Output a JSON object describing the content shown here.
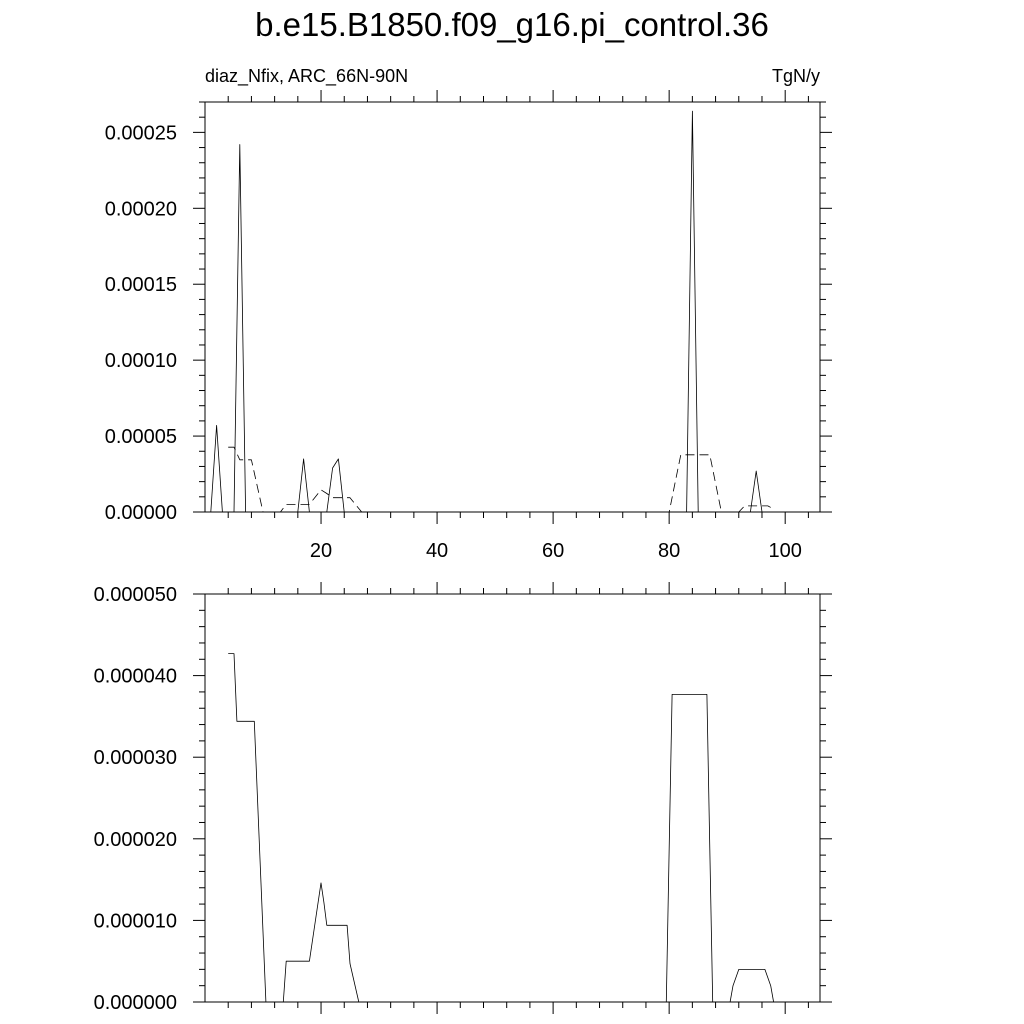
{
  "title": "b.e15.B1850.f09_g16.pi_control.36",
  "left_string": "diaz_Nfix, ARC_66N-90N",
  "right_string": "TgN/y",
  "chart_data": [
    {
      "type": "line",
      "xlim": [
        0,
        106
      ],
      "ylim": [
        0,
        0.00027
      ],
      "x_ticks": [
        20,
        40,
        60,
        80,
        100
      ],
      "x_tick_labels": [
        "20",
        "40",
        "60",
        "80",
        "100"
      ],
      "y_ticks": [
        0,
        5e-05,
        0.0001,
        0.00015,
        0.0002,
        0.00025
      ],
      "y_tick_labels": [
        "0.00000",
        "0.00005",
        "0.00010",
        "0.00015",
        "0.00020",
        "0.00025"
      ],
      "series": [
        {
          "style": "solid",
          "x": [
            0,
            1,
            2,
            3,
            4,
            5,
            6,
            7,
            8,
            9,
            10,
            11,
            12,
            13,
            14,
            15,
            16,
            17,
            18,
            19,
            20,
            21,
            22,
            23,
            24,
            25,
            26,
            27,
            28,
            29,
            30,
            31,
            32,
            33,
            34,
            35,
            36,
            37,
            38,
            39,
            40,
            41,
            42,
            43,
            44,
            45,
            46,
            47,
            48,
            49,
            50,
            51,
            52,
            53,
            54,
            55,
            56,
            57,
            58,
            59,
            60,
            61,
            62,
            63,
            64,
            65,
            66,
            67,
            68,
            69,
            70,
            71,
            72,
            73,
            74,
            75,
            76,
            77,
            78,
            79,
            80,
            81,
            82,
            83,
            84,
            85,
            86,
            87,
            88,
            89,
            90,
            91,
            92,
            93,
            94,
            95,
            96,
            97,
            98,
            99,
            100,
            101,
            102,
            103,
            104,
            105
          ],
          "values": [
            0,
            0,
            5.7e-05,
            0,
            0,
            0,
            0.000242,
            0,
            0,
            0,
            0,
            0,
            0,
            0,
            0,
            0,
            0,
            3.5e-05,
            0,
            0,
            0,
            0,
            2.9e-05,
            3.5e-05,
            0,
            0,
            0,
            0,
            0,
            0,
            0,
            0,
            0,
            0,
            0,
            0,
            0,
            0,
            0,
            0,
            0,
            0,
            0,
            0,
            0,
            0,
            0,
            0,
            0,
            0,
            0,
            0,
            0,
            0,
            0,
            0,
            0,
            0,
            0,
            0,
            0,
            0,
            0,
            0,
            0,
            0,
            0,
            0,
            0,
            0,
            0,
            0,
            0,
            0,
            0,
            0,
            0,
            0,
            0,
            0,
            0,
            0,
            0,
            0,
            0.000264,
            0,
            0,
            0,
            0,
            0,
            0,
            0,
            0,
            0,
            0,
            2.7e-05,
            0,
            0,
            0,
            0,
            0,
            0,
            0,
            0,
            0,
            0
          ]
        },
        {
          "style": "dashed",
          "x": [
            4,
            5,
            6,
            7,
            8,
            9,
            10,
            11,
            12,
            13,
            14,
            15,
            16,
            17,
            18,
            19,
            20,
            21,
            22,
            23,
            24,
            25,
            26,
            27,
            28,
            29,
            30,
            31,
            32,
            33,
            34,
            35,
            36,
            37,
            38,
            39,
            40,
            41,
            42,
            43,
            44,
            45,
            46,
            47,
            48,
            49,
            50,
            51,
            52,
            53,
            54,
            55,
            56,
            57,
            58,
            59,
            60,
            61,
            62,
            63,
            64,
            65,
            66,
            67,
            68,
            69,
            70,
            71,
            72,
            73,
            74,
            75,
            76,
            77,
            78,
            79,
            80,
            81,
            82,
            83,
            84,
            85,
            86,
            87,
            88,
            89,
            90,
            91,
            92,
            93,
            94,
            95,
            96,
            97,
            98
          ],
          "values": [
            4.27e-05,
            4.27e-05,
            3.44e-05,
            3.44e-05,
            3.44e-05,
            1.72e-05,
            0,
            0,
            0,
            0,
            5e-06,
            5e-06,
            5e-06,
            5e-06,
            5e-06,
            9.8e-06,
            1.46e-05,
            1.22e-05,
            9.4e-06,
            9.4e-06,
            9.4e-06,
            9.4e-06,
            4.7e-06,
            0,
            0,
            0,
            0,
            0,
            0,
            0,
            0,
            0,
            0,
            0,
            0,
            0,
            0,
            0,
            0,
            0,
            0,
            0,
            0,
            0,
            0,
            0,
            0,
            0,
            0,
            0,
            0,
            0,
            0,
            0,
            0,
            0,
            0,
            0,
            0,
            0,
            0,
            0,
            0,
            0,
            0,
            0,
            0,
            0,
            0,
            0,
            0,
            0,
            0,
            0,
            0,
            0,
            0,
            1.9e-05,
            3.77e-05,
            3.77e-05,
            3.77e-05,
            3.77e-05,
            3.77e-05,
            3.77e-05,
            1.88e-05,
            0,
            0,
            0,
            0,
            4e-06,
            4e-06,
            4e-06,
            4e-06,
            4e-06,
            2e-06
          ]
        }
      ]
    },
    {
      "type": "line",
      "xlim": [
        0,
        106
      ],
      "ylim": [
        0,
        5e-05
      ],
      "x_ticks": [
        20,
        40,
        60,
        80,
        100
      ],
      "x_tick_labels": [],
      "y_ticks": [
        0,
        1e-05,
        2e-05,
        3e-05,
        4e-05,
        5e-05
      ],
      "y_tick_labels": [
        "0.000000",
        "0.000010",
        "0.000020",
        "0.000030",
        "0.000040",
        "0.000050"
      ],
      "series": [
        {
          "style": "solid",
          "x": [
            4,
            5,
            5.5,
            8.5,
            9.5,
            10,
            10.5,
            11,
            12,
            13,
            13.5,
            14,
            15,
            16,
            17,
            18,
            19,
            20,
            20.5,
            21,
            22,
            23,
            24,
            24.5,
            25,
            26.5,
            27,
            28,
            30,
            40,
            50,
            60,
            70,
            79.5,
            80,
            80.5,
            82,
            84,
            86.5,
            87,
            87.5,
            88,
            90,
            90.5,
            91,
            92,
            93,
            94,
            95,
            96,
            96.5,
            97.5,
            98,
            100,
            105
          ],
          "values": [
            4.27e-05,
            4.27e-05,
            3.44e-05,
            3.44e-05,
            1.72e-05,
            8.6e-06,
            0,
            0,
            0,
            0,
            0,
            5e-06,
            5e-06,
            5e-06,
            5e-06,
            5e-06,
            9.8e-06,
            1.46e-05,
            1.22e-05,
            9.4e-06,
            9.4e-06,
            9.4e-06,
            9.4e-06,
            9.4e-06,
            4.7e-06,
            0,
            0,
            0,
            0,
            0,
            0,
            0,
            0,
            0,
            1.9e-05,
            3.77e-05,
            3.77e-05,
            3.77e-05,
            3.77e-05,
            1.88e-05,
            0,
            0,
            0,
            0,
            2e-06,
            4e-06,
            4e-06,
            4e-06,
            4e-06,
            4e-06,
            4e-06,
            2e-06,
            0,
            0,
            0
          ]
        }
      ]
    }
  ]
}
